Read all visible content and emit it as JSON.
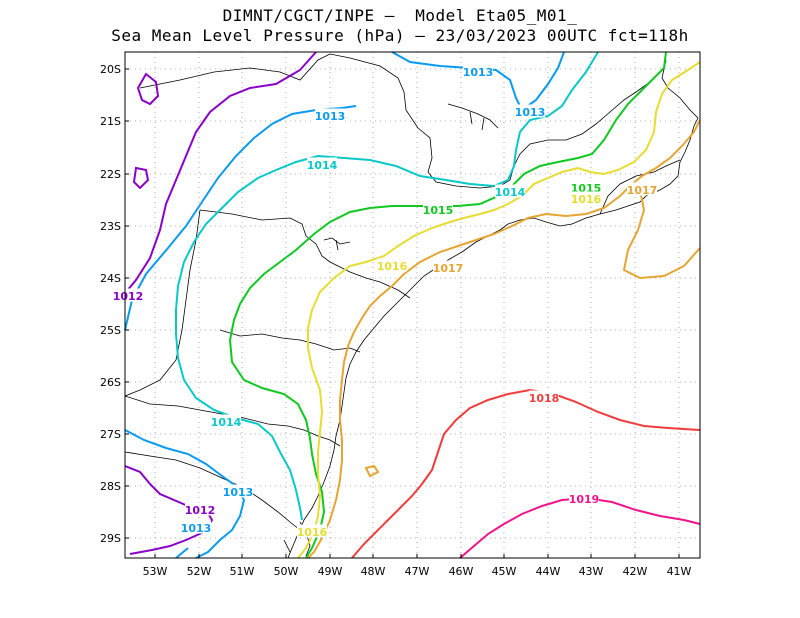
{
  "title_line1": "DIMNT/CGCT/INPE —  Model Eta05_M01_",
  "title_line2": "Sea Mean Level Pressure (hPa) — 23/03/2023 00UTC fct=118h",
  "lat_ticks": [
    "20S",
    "21S",
    "22S",
    "23S",
    "24S",
    "25S",
    "26S",
    "27S",
    "28S",
    "29S"
  ],
  "lon_ticks": [
    "53W",
    "52W",
    "51W",
    "50W",
    "49W",
    "48W",
    "47W",
    "46W",
    "45W",
    "44W",
    "43W",
    "42W",
    "41W"
  ],
  "colors": {
    "c1012": "#8a00c8",
    "c1013": "#0a9bf0",
    "c1014": "#0ac8c8",
    "c1015": "#10c820",
    "c1016": "#e6dc32",
    "c1017": "#e6a532",
    "c1018": "#f03c3c",
    "c1019": "#f0148c",
    "border": "#000000",
    "grid": "#999999"
  },
  "contour_labels": [
    {
      "text": "1012",
      "color": "#8a00c8"
    },
    {
      "text": "1012",
      "color": "#8a00c8"
    },
    {
      "text": "1013",
      "color": "#0a9bf0"
    },
    {
      "text": "1013",
      "color": "#0a9bf0"
    },
    {
      "text": "1013",
      "color": "#0a9bf0"
    },
    {
      "text": "1013",
      "color": "#0a9bf0"
    },
    {
      "text": "1013",
      "color": "#0a9bf0"
    },
    {
      "text": "1014",
      "color": "#0ac8c8"
    },
    {
      "text": "1014",
      "color": "#0ac8c8"
    },
    {
      "text": "1014",
      "color": "#0ac8c8"
    },
    {
      "text": "1015",
      "color": "#10c820"
    },
    {
      "text": "1015",
      "color": "#10c820"
    },
    {
      "text": "1016",
      "color": "#e6dc32"
    },
    {
      "text": "1016",
      "color": "#e6dc32"
    },
    {
      "text": "1016",
      "color": "#e6dc32"
    },
    {
      "text": "1017",
      "color": "#e6a532"
    },
    {
      "text": "1017",
      "color": "#e6a532"
    },
    {
      "text": "1018",
      "color": "#f03c3c"
    },
    {
      "text": "1019",
      "color": "#f0148c"
    }
  ]
}
